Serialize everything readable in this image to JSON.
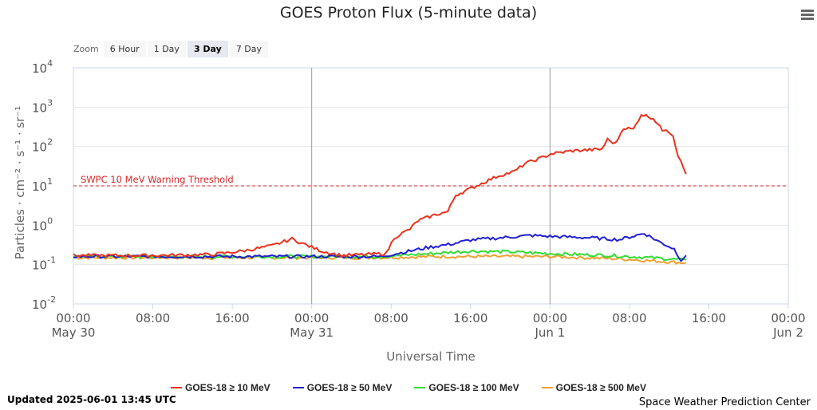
{
  "title": "GOES Proton Flux (5-minute data)",
  "zoom": {
    "label": "Zoom",
    "buttons": [
      "6 Hour",
      "1 Day",
      "3 Day",
      "7 Day"
    ],
    "selected": "3 Day"
  },
  "updated": "Updated 2025-06-01 13:45 UTC",
  "credit": "Space Weather Prediction Center",
  "chart_data": {
    "type": "line",
    "title": "GOES Proton Flux (5-minute data)",
    "xlabel": "Universal Time",
    "ylabel": "Particles · cm⁻² · s⁻¹ · sr⁻¹",
    "yscale": "log",
    "ylim": [
      0.01,
      10000
    ],
    "y_ticks": [
      {
        "b": "10",
        "e": "4"
      },
      {
        "b": "10",
        "e": "3"
      },
      {
        "b": "10",
        "e": "2"
      },
      {
        "b": "10",
        "e": "1"
      },
      {
        "b": "10",
        "e": "0"
      },
      {
        "b": "10",
        "e": "-1"
      },
      {
        "b": "10",
        "e": "-2"
      }
    ],
    "x_unit": "hours since 2025-05-30 00:00 UTC",
    "xlim": [
      0,
      72
    ],
    "x_ticks": [
      {
        "h": 0,
        "t": "00:00",
        "d": "May 30"
      },
      {
        "h": 8,
        "t": "08:00",
        "d": ""
      },
      {
        "h": 16,
        "t": "16:00",
        "d": ""
      },
      {
        "h": 24,
        "t": "00:00",
        "d": "May 31"
      },
      {
        "h": 32,
        "t": "08:00",
        "d": ""
      },
      {
        "h": 40,
        "t": "16:00",
        "d": ""
      },
      {
        "h": 48,
        "t": "00:00",
        "d": "Jun 1"
      },
      {
        "h": 56,
        "t": "08:00",
        "d": ""
      },
      {
        "h": 64,
        "t": "16:00",
        "d": ""
      },
      {
        "h": 72,
        "t": "00:00",
        "d": "Jun 2"
      }
    ],
    "threshold": {
      "label": "SWPC 10 MeV Warning Threshold",
      "value": 10,
      "color": "#d62728"
    },
    "series": [
      {
        "name": "GOES-18 ≥ 10 MeV",
        "color": "#e8321e",
        "points": [
          [
            0,
            0.17
          ],
          [
            8,
            0.17
          ],
          [
            14,
            0.18
          ],
          [
            17,
            0.22
          ],
          [
            20,
            0.3
          ],
          [
            22,
            0.45
          ],
          [
            23,
            0.35
          ],
          [
            25,
            0.22
          ],
          [
            27,
            0.17
          ],
          [
            31.5,
            0.19
          ],
          [
            32.3,
            0.48
          ],
          [
            33.9,
            0.8
          ],
          [
            34.7,
            1.3
          ],
          [
            36.6,
            1.9
          ],
          [
            37.7,
            2.2
          ],
          [
            38.5,
            5.8
          ],
          [
            39.9,
            8.3
          ],
          [
            41.1,
            11.5
          ],
          [
            42.8,
            18
          ],
          [
            44.4,
            23
          ],
          [
            45.5,
            37
          ],
          [
            47.1,
            51
          ],
          [
            48.1,
            65
          ],
          [
            50.3,
            78
          ],
          [
            53.2,
            85
          ],
          [
            53.8,
            150
          ],
          [
            54.6,
            118
          ],
          [
            55.4,
            300
          ],
          [
            56.4,
            275
          ],
          [
            57.2,
            660
          ],
          [
            58.4,
            525
          ],
          [
            59.3,
            263
          ],
          [
            59.7,
            280
          ],
          [
            60.4,
            190
          ],
          [
            60.9,
            59
          ],
          [
            61.7,
            20
          ]
        ]
      },
      {
        "name": "GOES-18 ≥ 50 MeV",
        "color": "#2020d0",
        "points": [
          [
            0,
            0.16
          ],
          [
            31,
            0.16
          ],
          [
            33,
            0.2
          ],
          [
            36,
            0.28
          ],
          [
            38,
            0.33
          ],
          [
            40,
            0.42
          ],
          [
            44,
            0.5
          ],
          [
            46,
            0.55
          ],
          [
            48,
            0.52
          ],
          [
            52,
            0.48
          ],
          [
            55,
            0.43
          ],
          [
            56,
            0.5
          ],
          [
            57.5,
            0.62
          ],
          [
            59,
            0.38
          ],
          [
            60.5,
            0.25
          ],
          [
            61.2,
            0.13
          ],
          [
            61.7,
            0.17
          ]
        ]
      },
      {
        "name": "GOES-18 ≥ 100 MeV",
        "color": "#33dd33",
        "points": [
          [
            0,
            0.16
          ],
          [
            31,
            0.16
          ],
          [
            36,
            0.19
          ],
          [
            40,
            0.22
          ],
          [
            44,
            0.21
          ],
          [
            48,
            0.19
          ],
          [
            54,
            0.17
          ],
          [
            58,
            0.15
          ],
          [
            61.7,
            0.13
          ]
        ]
      },
      {
        "name": "GOES-18 ≥ 500 MeV",
        "color": "#f0a030",
        "points": [
          [
            0,
            0.15
          ],
          [
            31,
            0.15
          ],
          [
            36,
            0.16
          ],
          [
            48,
            0.16
          ],
          [
            55,
            0.14
          ],
          [
            61.7,
            0.11
          ]
        ]
      }
    ]
  }
}
